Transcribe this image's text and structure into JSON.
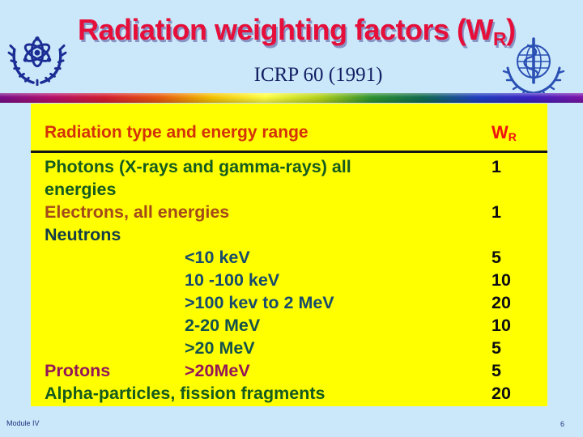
{
  "slide": {
    "title": {
      "prefix": "Radiation weighting factors (W",
      "subscript": "R",
      "suffix": ")"
    },
    "subtitle": "ICRP 60 (1991)",
    "footer_left": "Module IV",
    "page_number": "6"
  },
  "logos": {
    "left": "iaea-atom-laurel-emblem",
    "right": "who-globe-staff-emblem"
  },
  "colors": {
    "background": "#cbe8fa",
    "title_red": "#e60f3a",
    "title_shadow": "#8794c4",
    "subtitle_navy": "#131f63",
    "table_bg": "#ffff00",
    "header_red": "#d43108",
    "wr_red": "#ee1111",
    "value_black": "#0d0d12",
    "divider_black": "#141414",
    "footer_blue": "#20307c",
    "logo_left_blue": "#1b2d94",
    "logo_right_blue": "#2b50b4",
    "rainbow_stops": [
      "#7a0f8a",
      "#b5106a",
      "#d41f2f",
      "#e85a10",
      "#f5c304",
      "#ffff42",
      "#b8d41c",
      "#2f9431",
      "#116b52",
      "#1f3fbf",
      "#3c23c4",
      "#7d15a8"
    ]
  },
  "table": {
    "header": {
      "col1": "Radiation type and energy range",
      "col2_main": "W",
      "col2_sub": "R"
    },
    "rows": [
      {
        "label": "Photons (X-rays and gamma-rays) all",
        "indent": false,
        "color": "#155a1e",
        "value": "1"
      },
      {
        "label": "energies",
        "indent": false,
        "color": "#155a1e",
        "value": ""
      },
      {
        "label": "Electrons, all energies",
        "indent": false,
        "color": "#a34a1a",
        "value": "1"
      },
      {
        "label": "Neutrons",
        "indent": false,
        "color": "#123c46",
        "value": ""
      },
      {
        "label": "<10 keV",
        "indent": true,
        "color": "#174a6b",
        "value": "5"
      },
      {
        "label": "10 -100 keV",
        "indent": true,
        "color": "#174a6b",
        "value": "10"
      },
      {
        "label": ">100 kev to 2 MeV",
        "indent": true,
        "color": "#174a6b",
        "value": "20"
      },
      {
        "label": "2-20 MeV",
        "indent": true,
        "color": "#14514b",
        "value": "10"
      },
      {
        "label": ">20 MeV",
        "indent": true,
        "color": "#14514b",
        "value": "5"
      },
      {
        "label": "Protons",
        "label2": ">20MeV",
        "indent": false,
        "color": "#931758",
        "value": "5"
      },
      {
        "label": "Alpha-particles, fission fragments",
        "indent": false,
        "color": "#155a1e",
        "value": "20"
      }
    ]
  }
}
